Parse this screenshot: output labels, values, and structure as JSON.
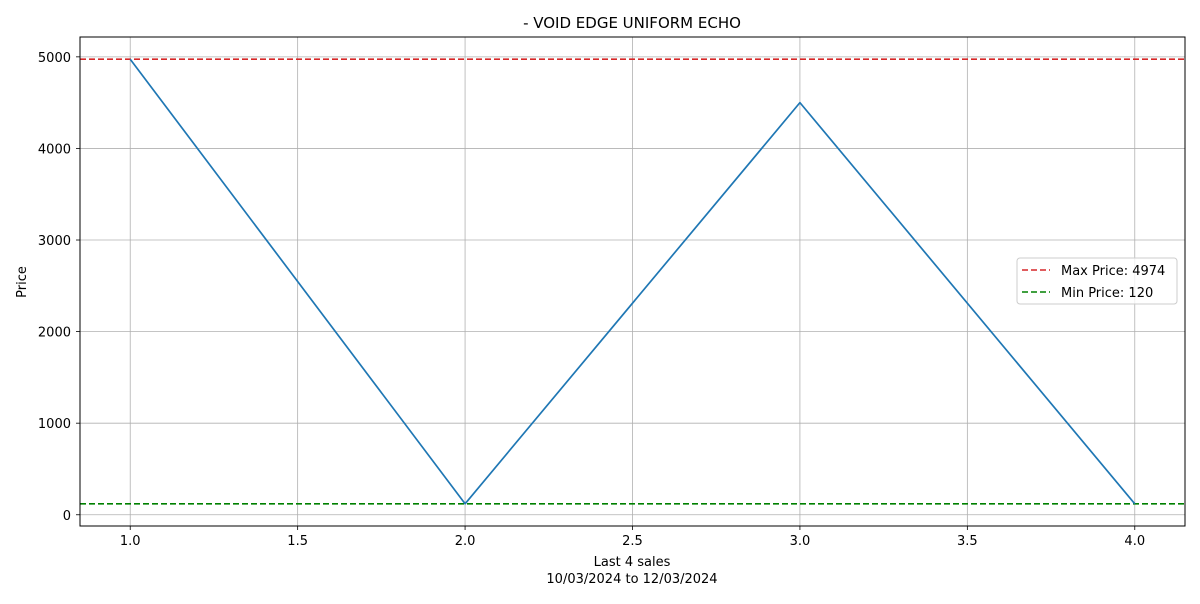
{
  "chart_data": {
    "type": "line",
    "title": "- VOID EDGE UNIFORM ECHO",
    "xlabel": "Last 4 sales",
    "xlabel_sub": "10/03/2024 to 12/03/2024",
    "ylabel": "Price",
    "x": [
      1.0,
      2.0,
      3.0,
      4.0
    ],
    "series": [
      {
        "values": [
          4974,
          120,
          4500,
          120
        ],
        "color": "#1f77b4"
      }
    ],
    "reference_lines": [
      {
        "name": "Max Price: 4974",
        "value": 4974,
        "color": "#d62728",
        "style": "dashed"
      },
      {
        "name": "Min Price: 120",
        "value": 120,
        "color": "#008000",
        "style": "dashed"
      }
    ],
    "xlim": [
      0.85,
      4.15
    ],
    "ylim": [
      -122.7,
      5216.7
    ],
    "xticks": [
      1.0,
      1.5,
      2.0,
      2.5,
      3.0,
      3.5,
      4.0
    ],
    "xtick_labels": [
      "1.0",
      "1.5",
      "2.0",
      "2.5",
      "3.0",
      "3.5",
      "4.0"
    ],
    "yticks": [
      0,
      1000,
      2000,
      3000,
      4000,
      5000
    ],
    "ytick_labels": [
      "0",
      "1000",
      "2000",
      "3000",
      "4000",
      "5000"
    ],
    "grid": true,
    "legend_position": "center-right"
  }
}
